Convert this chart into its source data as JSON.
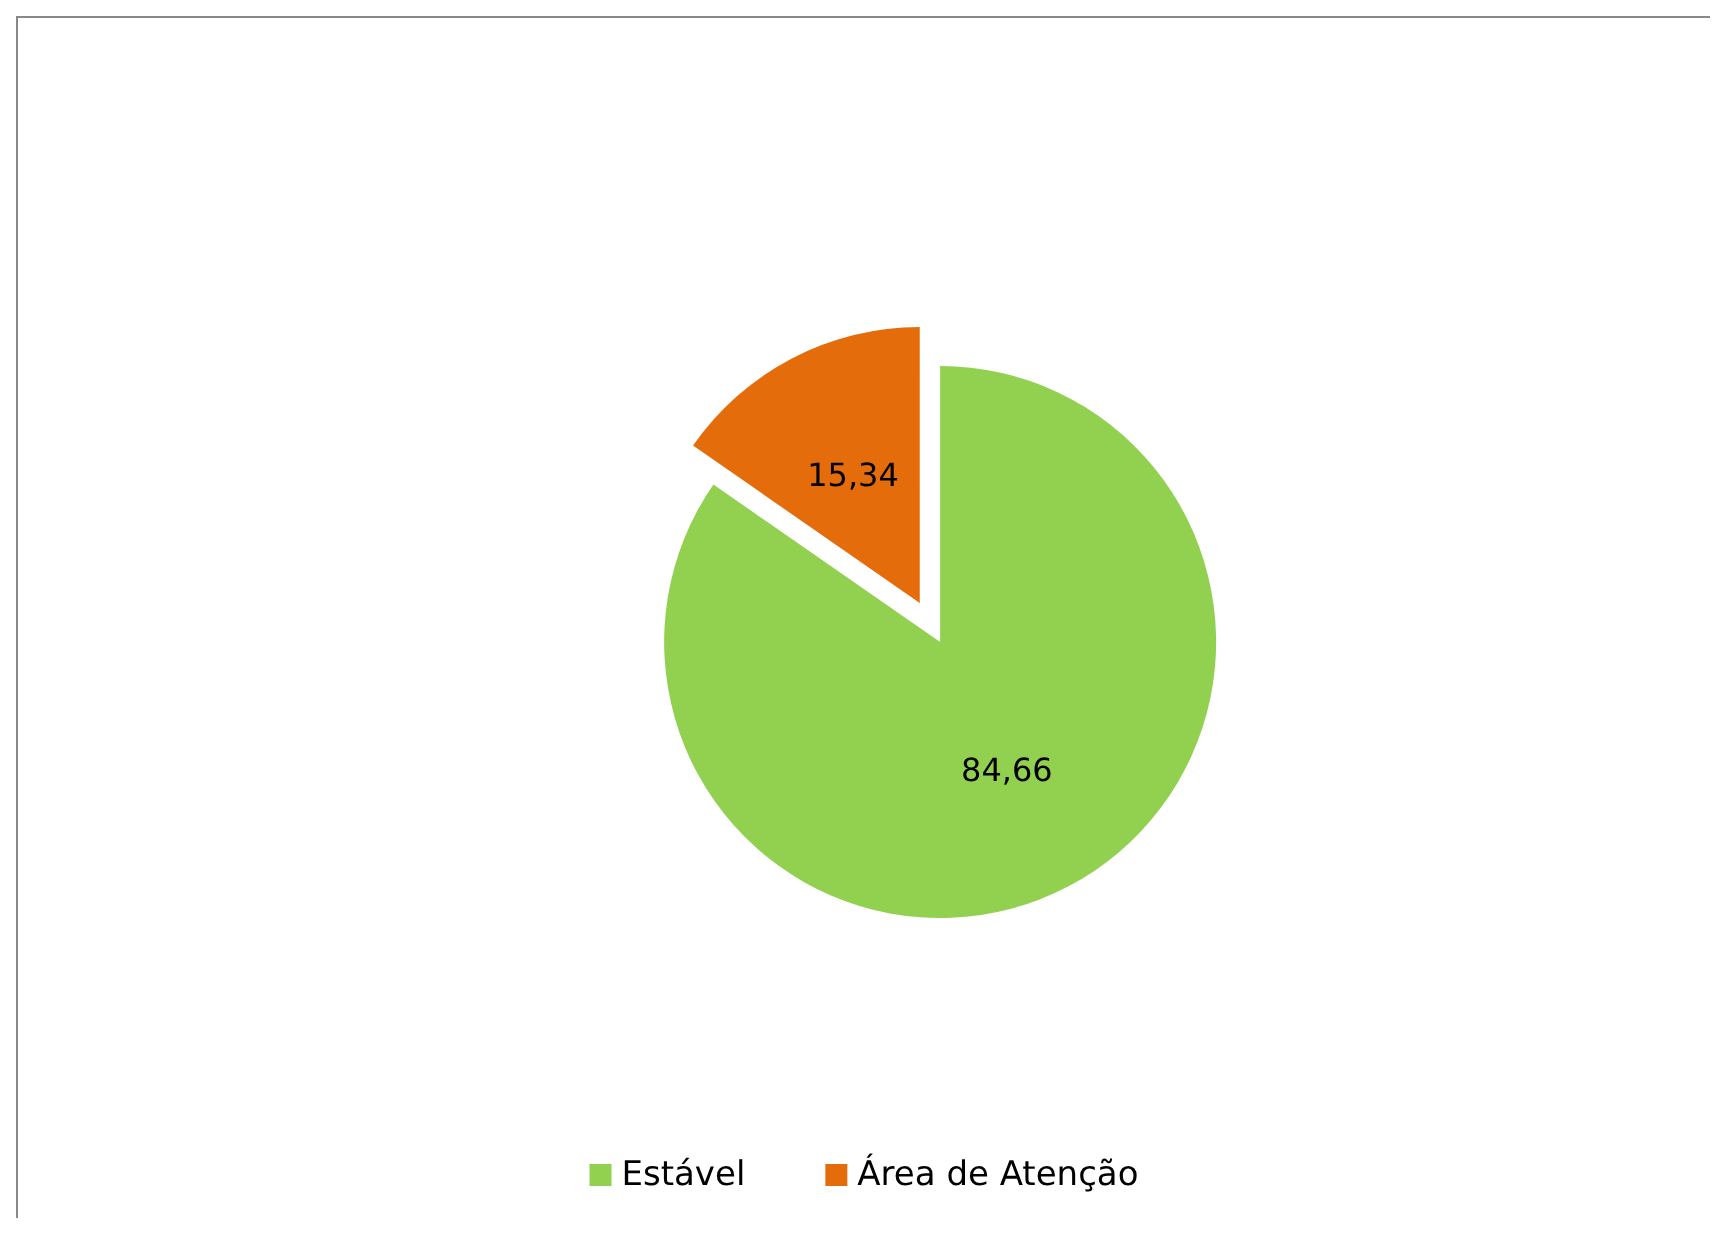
{
  "chart_data": {
    "type": "pie",
    "categories": [
      "Estável",
      "Área de Atenção"
    ],
    "values": [
      84.66,
      15.34
    ],
    "colors": [
      "#92d050",
      "#e46c0a"
    ],
    "value_labels": [
      "84,66",
      "15,34"
    ],
    "legend": "bottom"
  }
}
